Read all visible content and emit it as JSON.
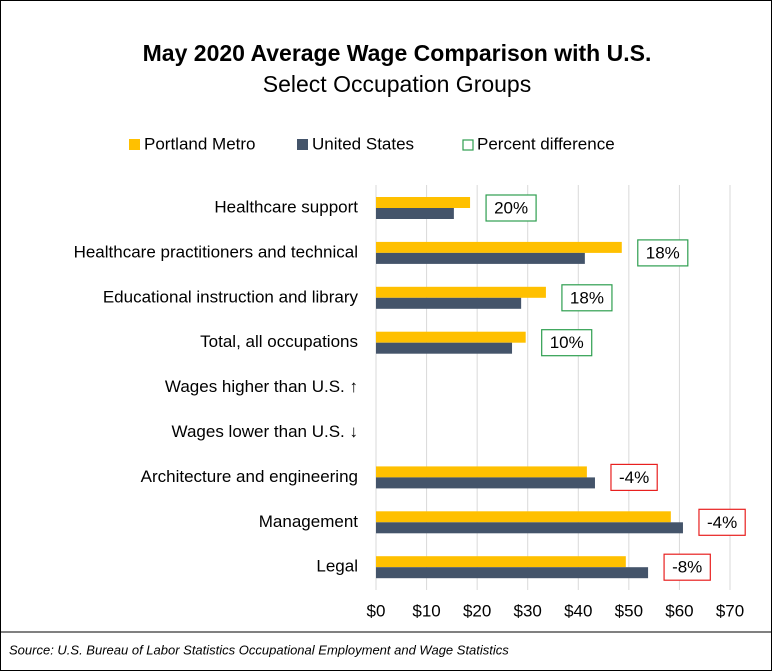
{
  "chart_data": {
    "type": "bar",
    "orientation": "horizontal",
    "title": "May 2020 Average Wage Comparison with U.S.",
    "subtitle": "Select Occupation Groups",
    "source": "Source: U.S. Bureau of Labor Statistics Occupational Employment and Wage Statistics",
    "categories": [
      "Healthcare support",
      "Healthcare practitioners and technical",
      "Educational instruction and library",
      "Total, all occupations",
      "Wages higher than U.S. ↑",
      "Wages lower than U.S. ↓",
      "Architecture and engineering",
      "Management",
      "Legal"
    ],
    "series": [
      {
        "name": "Portland Metro",
        "color": "#ffc000",
        "values": [
          18.6,
          48.6,
          33.6,
          29.6,
          null,
          null,
          41.7,
          58.3,
          49.4
        ]
      },
      {
        "name": "United States",
        "color": "#44546a",
        "values": [
          15.4,
          41.3,
          28.7,
          26.9,
          null,
          null,
          43.3,
          60.7,
          53.8
        ]
      },
      {
        "name": "Percent difference",
        "style": "box",
        "color": "#2e9e4f",
        "negative_color": "#e8201f",
        "values": [
          20,
          18,
          18,
          10,
          null,
          null,
          -4,
          -4,
          -8
        ],
        "value_labels": [
          "20%",
          "18%",
          "18%",
          "10%",
          null,
          null,
          "-4%",
          "-4%",
          "-8%"
        ]
      }
    ],
    "xlim": [
      0,
      70
    ],
    "xticks": [
      {
        "value": 0,
        "label": "$0"
      },
      {
        "value": 10,
        "label": "$10"
      },
      {
        "value": 20,
        "label": "$20"
      },
      {
        "value": 30,
        "label": "$30"
      },
      {
        "value": 40,
        "label": "$40"
      },
      {
        "value": 50,
        "label": "$50"
      },
      {
        "value": 60,
        "label": "$60"
      },
      {
        "value": 70,
        "label": "$70"
      }
    ],
    "grid": true,
    "legend": "top"
  }
}
